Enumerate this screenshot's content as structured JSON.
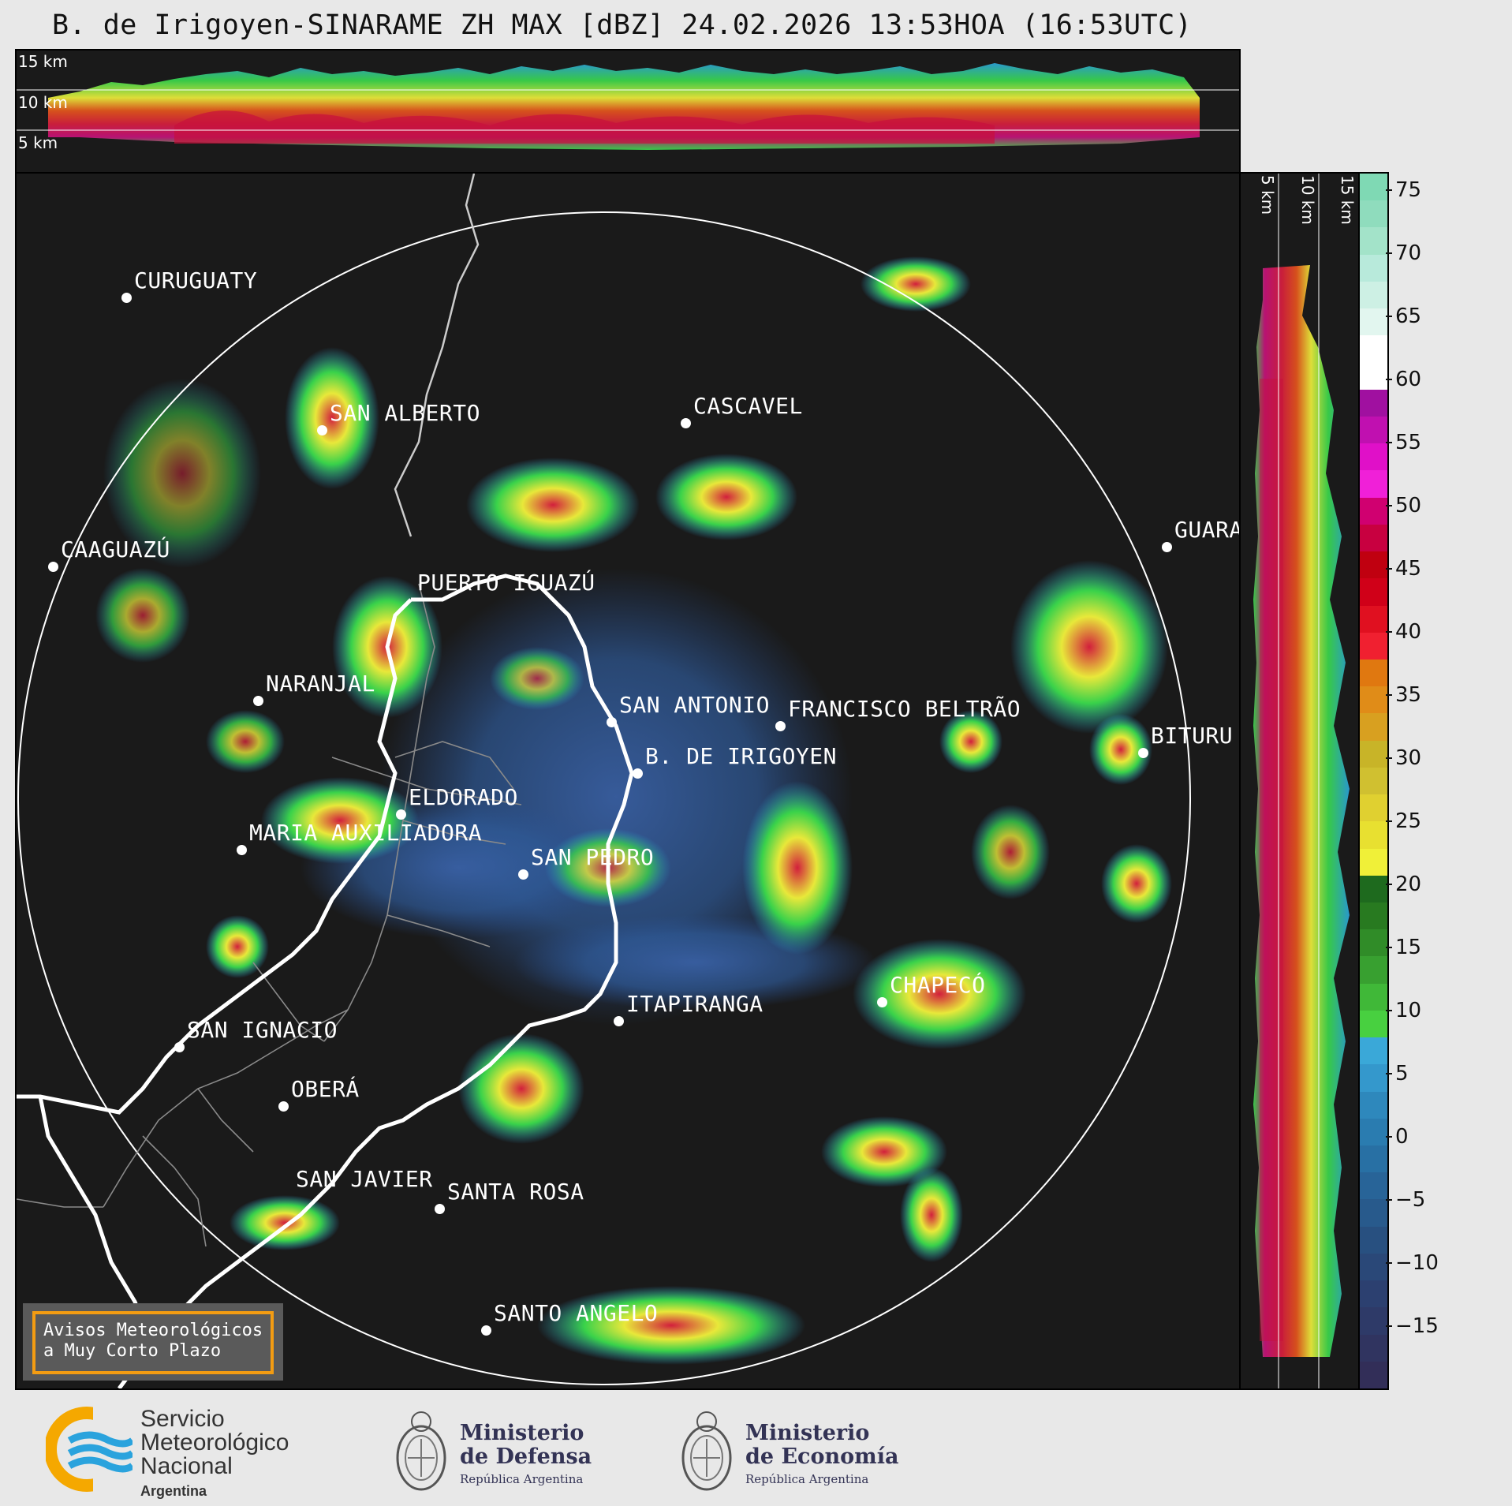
{
  "title": "B. de Irigoyen-SINARAME ZH MAX [dBZ] 24.02.2026 13:53HOA (16:53UTC)",
  "top_panel": {
    "altitude_labels": [
      "15 km",
      "10 km",
      "5 km"
    ]
  },
  "right_panel": {
    "altitude_labels": [
      "5 km",
      "10 km",
      "15 km"
    ]
  },
  "cities": [
    {
      "name": "CURUGUATY"
    },
    {
      "name": "SAN ALBERTO"
    },
    {
      "name": "CASCAVEL"
    },
    {
      "name": "CAAGUAZÚ"
    },
    {
      "name": "GUARA"
    },
    {
      "name": "PUERTO IGUAZÚ"
    },
    {
      "name": "NARANJAL"
    },
    {
      "name": "SAN ANTONIO"
    },
    {
      "name": "FRANCISCO BELTRÃO"
    },
    {
      "name": "B. DE IRIGOYEN"
    },
    {
      "name": "BITURU"
    },
    {
      "name": "ELDORADO"
    },
    {
      "name": "MARIA AUXILIADORA"
    },
    {
      "name": "SAN PEDRO"
    },
    {
      "name": "CHAPECÓ"
    },
    {
      "name": "ITAPIRANGA"
    },
    {
      "name": "SAN IGNACIO"
    },
    {
      "name": "OBERÁ"
    },
    {
      "name": "SAN JAVIER"
    },
    {
      "name": "SANTA ROSA"
    },
    {
      "name": "SANTO ANGELO"
    }
  ],
  "alerts_box": {
    "line1": "Avisos Meteorológicos",
    "line2": "a Muy Corto Plazo"
  },
  "colorbar": {
    "ticks": [
      "75",
      "70",
      "65",
      "60",
      "55",
      "50",
      "45",
      "40",
      "35",
      "30",
      "25",
      "20",
      "15",
      "10",
      "5",
      "0",
      "−5",
      "−10",
      "−15"
    ],
    "range_dbz": [
      -20,
      77
    ]
  },
  "footer": {
    "smn": {
      "line1": "Servicio",
      "line2": "Meteorológico",
      "line3": "Nacional",
      "line4": "Argentina"
    },
    "ministerio_defensa": {
      "line1": "Ministerio",
      "line2": "de Defensa",
      "line3": "República Argentina"
    },
    "ministerio_economia": {
      "line1": "Ministerio",
      "line2": "de Economía",
      "line3": "República Argentina"
    }
  },
  "colors": {
    "background": "#1a1a1a",
    "page": "#e8e8e8",
    "alert_border": "#f39c12",
    "smn_yellow": "#f5a800",
    "smn_blue": "#2aa3dd"
  }
}
